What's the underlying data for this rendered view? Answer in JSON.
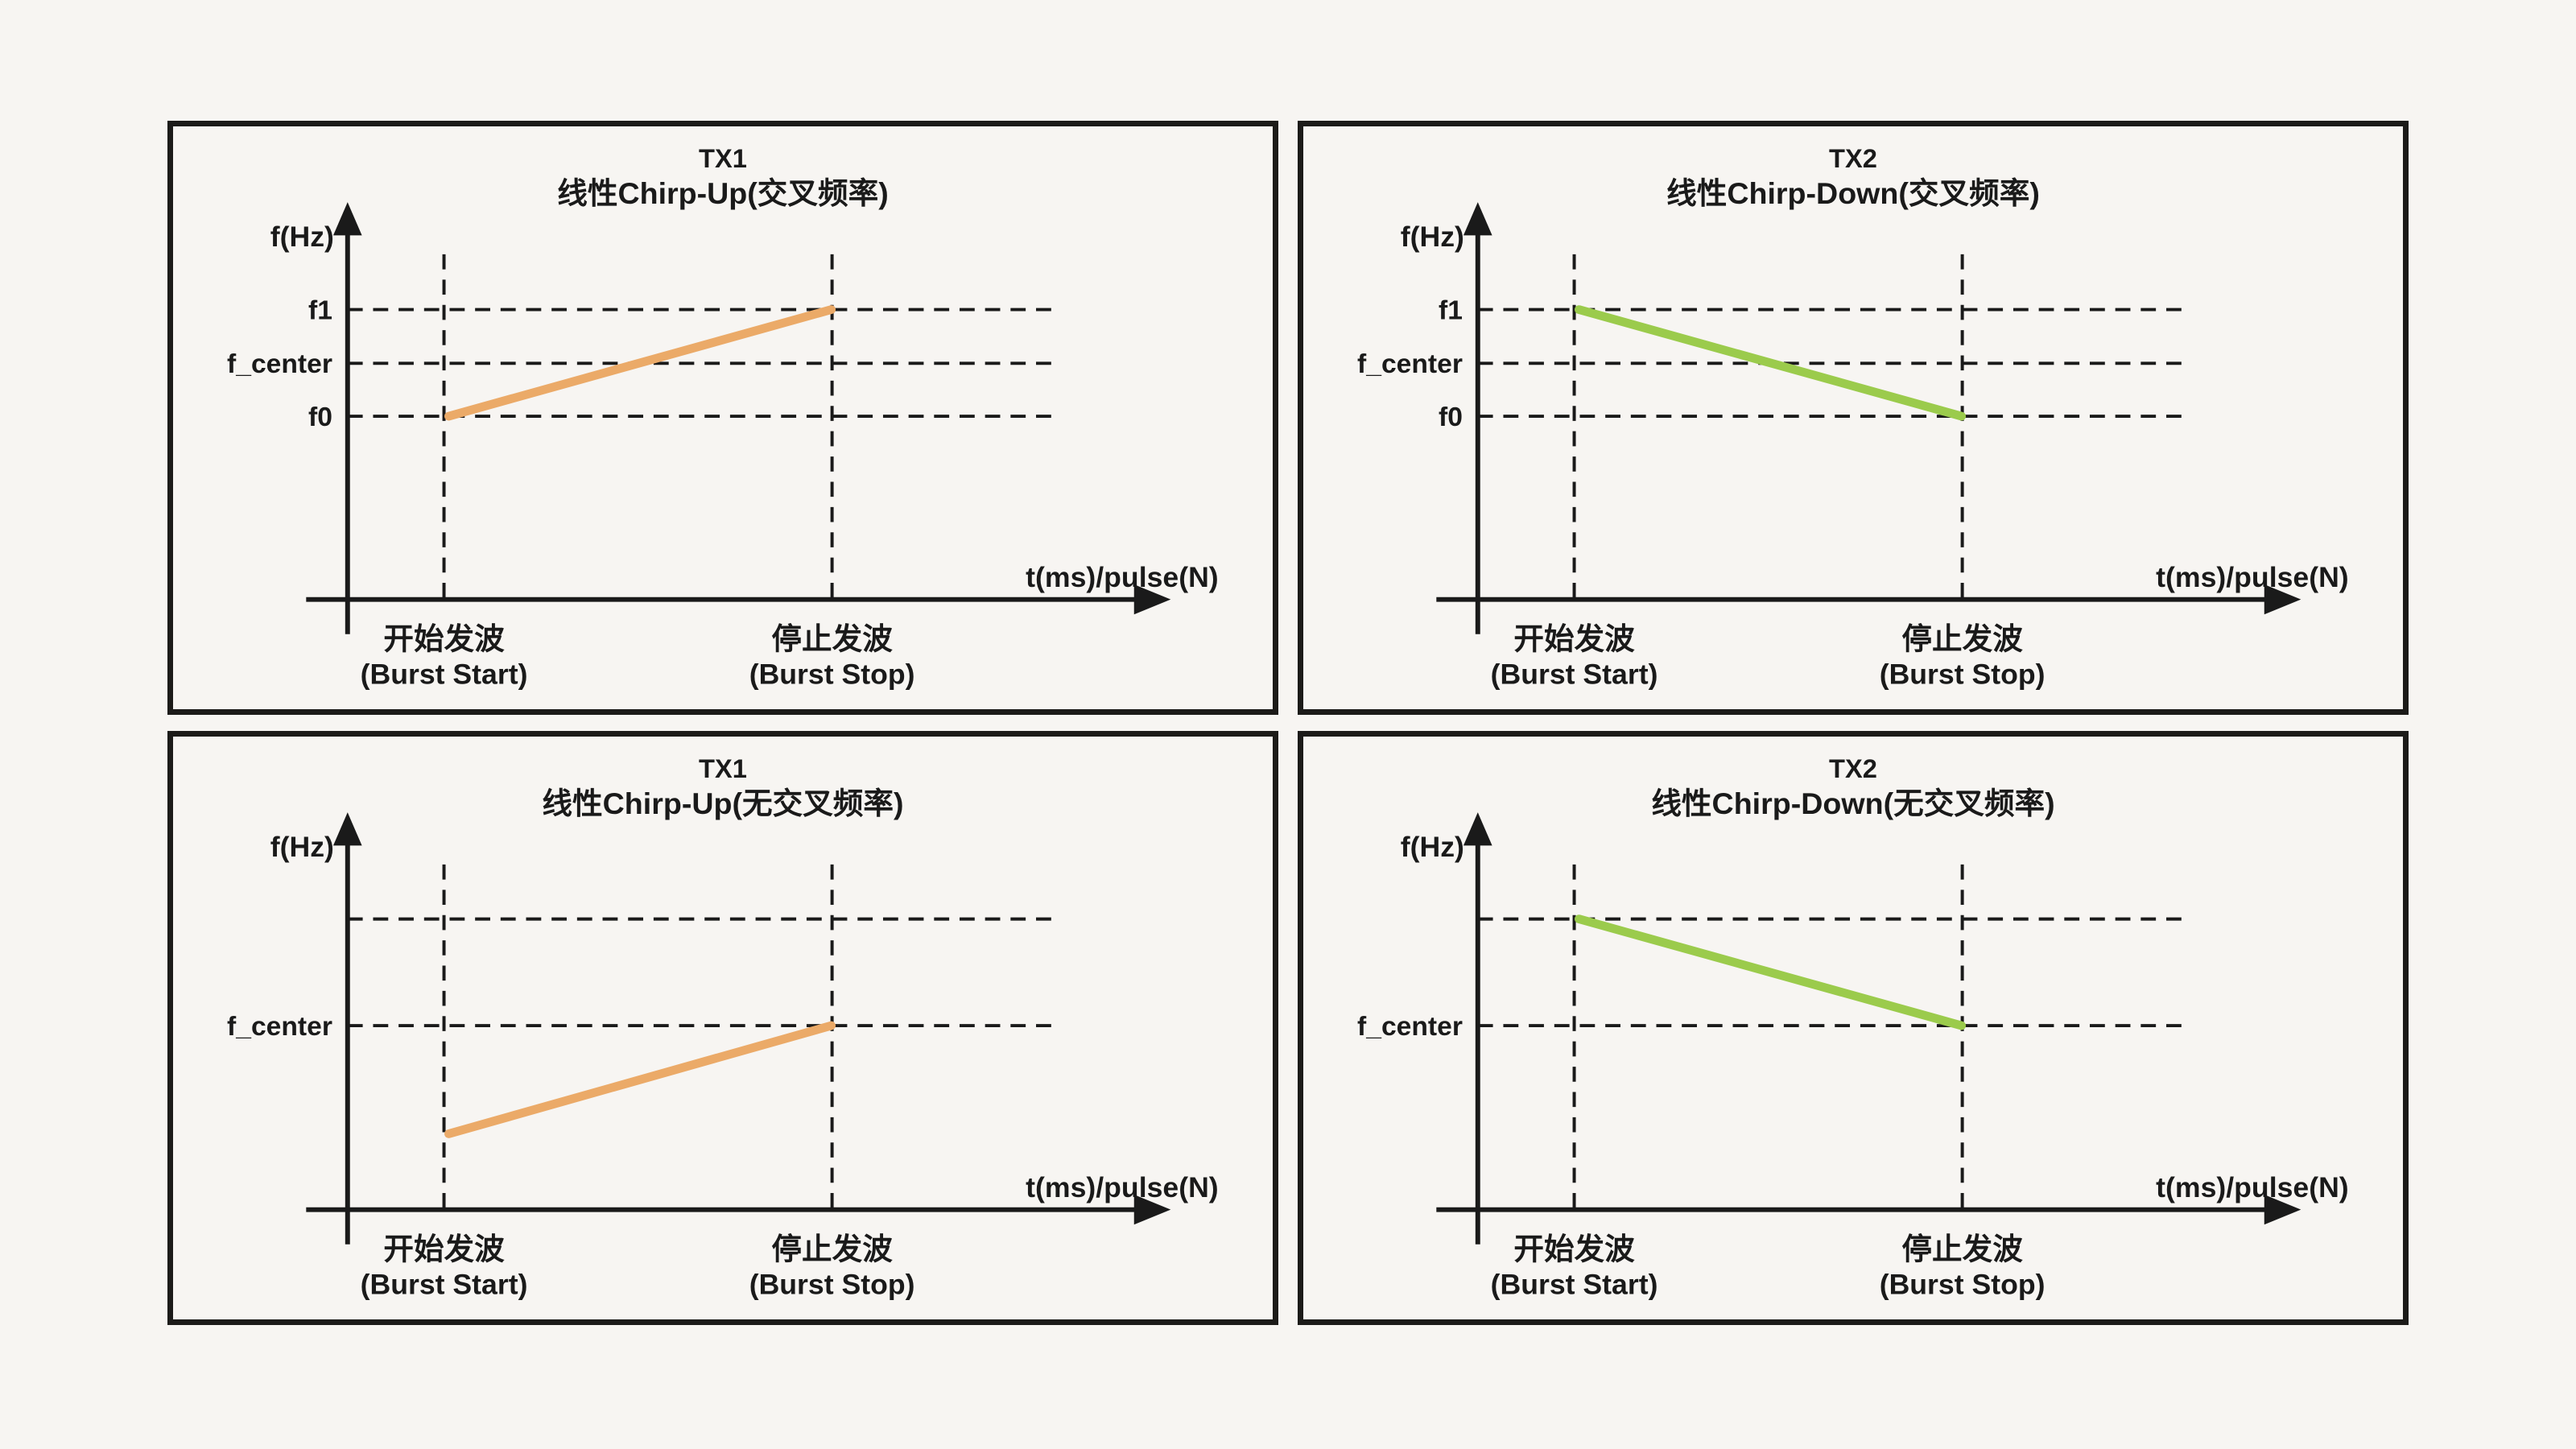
{
  "page": {
    "background": "#F7F5F2",
    "ink": "#1A1A1A"
  },
  "colors": {
    "tx1_orange": "#EBAA68",
    "tx2_green": "#9BCB4C"
  },
  "panels": [
    {
      "id": "tx1-cross",
      "title1": "TX1",
      "title2": "线性Chirp-Up(交叉频率)",
      "title_color": "#EBAA68",
      "y_axis_label": "f(Hz)",
      "x_axis_label": "t(ms)/pulse(N)",
      "gridlines": [
        {
          "label": "f1",
          "y": 232
        },
        {
          "label": "f_center",
          "y": 300
        },
        {
          "label": "f0",
          "y": 367
        }
      ],
      "line": {
        "color": "#EBAA68",
        "x1": 346,
        "y1": 367,
        "x2": 826,
        "y2": 232
      },
      "x_ticks": [
        {
          "zh": "开始发波",
          "en": "(Burst Start)"
        },
        {
          "zh": "停止发波",
          "en": "(Burst Stop)"
        }
      ]
    },
    {
      "id": "tx2-cross",
      "title1": "TX2",
      "title2": "线性Chirp-Down(交叉频率)",
      "title_color": "#9BCB4C",
      "y_axis_label": "f(Hz)",
      "x_axis_label": "t(ms)/pulse(N)",
      "gridlines": [
        {
          "label": "f1",
          "y": 232
        },
        {
          "label": "f_center",
          "y": 300
        },
        {
          "label": "f0",
          "y": 367
        }
      ],
      "line": {
        "color": "#9BCB4C",
        "x1": 346,
        "y1": 232,
        "x2": 826,
        "y2": 367
      },
      "x_ticks": [
        {
          "zh": "开始发波",
          "en": "(Burst Start)"
        },
        {
          "zh": "停止发波",
          "en": "(Burst Stop)"
        }
      ]
    },
    {
      "id": "tx1-nocross",
      "title1": "TX1",
      "title2": "线性Chirp-Up(无交叉频率)",
      "title_color": "#EBAA68",
      "y_axis_label": "f(Hz)",
      "x_axis_label": "t(ms)/pulse(N)",
      "gridlines": [
        {
          "label": "",
          "y": 231
        },
        {
          "label": "f_center",
          "y": 366
        }
      ],
      "line": {
        "color": "#EBAA68",
        "x1": 346,
        "y1": 503,
        "x2": 826,
        "y2": 366
      },
      "x_ticks": [
        {
          "zh": "开始发波",
          "en": "(Burst Start)"
        },
        {
          "zh": "停止发波",
          "en": "(Burst Stop)"
        }
      ]
    },
    {
      "id": "tx2-nocross",
      "title1": "TX2",
      "title2": "线性Chirp-Down(无交叉频率)",
      "title_color": "#9BCB4C",
      "y_axis_label": "f(Hz)",
      "x_axis_label": "t(ms)/pulse(N)",
      "gridlines": [
        {
          "label": "",
          "y": 231
        },
        {
          "label": "f_center",
          "y": 366
        }
      ],
      "line": {
        "color": "#9BCB4C",
        "x1": 346,
        "y1": 231,
        "x2": 826,
        "y2": 366
      },
      "x_ticks": [
        {
          "zh": "开始发波",
          "en": "(Burst Start)"
        },
        {
          "zh": "停止发波",
          "en": "(Burst Stop)"
        }
      ]
    }
  ],
  "chart_data": [
    {
      "type": "line",
      "title": "TX1 线性Chirp-Up(交叉频率)",
      "xlabel": "t(ms)/pulse(N)",
      "ylabel": "f(Hz)",
      "x": [
        "开始发波 (Burst Start)",
        "停止发波 (Burst Stop)"
      ],
      "y": [
        "f0",
        "f1"
      ],
      "y_gridlines": [
        "f1",
        "f_center",
        "f0"
      ],
      "series_color": "#EBAA68",
      "grid": "dashed"
    },
    {
      "type": "line",
      "title": "TX2 线性Chirp-Down(交叉频率)",
      "xlabel": "t(ms)/pulse(N)",
      "ylabel": "f(Hz)",
      "x": [
        "开始发波 (Burst Start)",
        "停止发波 (Burst Stop)"
      ],
      "y": [
        "f1",
        "f0"
      ],
      "y_gridlines": [
        "f1",
        "f_center",
        "f0"
      ],
      "series_color": "#9BCB4C",
      "grid": "dashed"
    },
    {
      "type": "line",
      "title": "TX1 线性Chirp-Up(无交叉频率)",
      "xlabel": "t(ms)/pulse(N)",
      "ylabel": "f(Hz)",
      "x": [
        "开始发波 (Burst Start)",
        "停止发波 (Burst Stop)"
      ],
      "y": [
        "below f_center",
        "f_center"
      ],
      "y_gridlines": [
        "(unlabeled upper)",
        "f_center"
      ],
      "series_color": "#EBAA68",
      "grid": "dashed"
    },
    {
      "type": "line",
      "title": "TX2 线性Chirp-Down(无交叉频率)",
      "xlabel": "t(ms)/pulse(N)",
      "ylabel": "f(Hz)",
      "x": [
        "开始发波 (Burst Start)",
        "停止发波 (Burst Stop)"
      ],
      "y": [
        "(unlabeled upper)",
        "f_center"
      ],
      "y_gridlines": [
        "(unlabeled upper)",
        "f_center"
      ],
      "series_color": "#9BCB4C",
      "grid": "dashed"
    }
  ]
}
